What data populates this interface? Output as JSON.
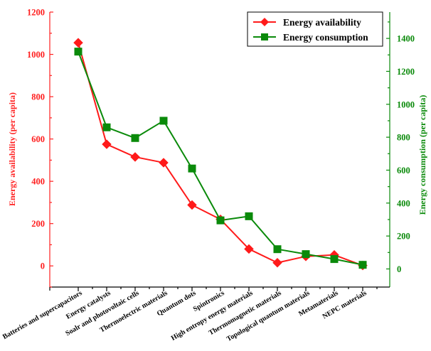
{
  "chart_data": {
    "type": "line",
    "categories": [
      "Batteries and supercapacitors",
      "Energy catalysts",
      "Soalr and photovoltaic cells",
      "Thermoelectric materials",
      "Quantum dots",
      "Spintronics",
      "High entropy energy materials",
      "Thermomagnetic materials",
      "Topological quantum materials",
      "Metamaterials",
      "NEPC materials"
    ],
    "series": [
      {
        "name": "Energy availability",
        "axis": "left",
        "color": "#ff1a1a",
        "marker": "diamond",
        "values": [
          1055,
          575,
          515,
          488,
          288,
          220,
          80,
          15,
          45,
          52,
          2
        ]
      },
      {
        "name": "Energy consumption",
        "axis": "right",
        "color": "#0a8a0a",
        "marker": "square",
        "values": [
          1320,
          860,
          795,
          900,
          610,
          295,
          320,
          120,
          90,
          60,
          25
        ]
      }
    ],
    "ylabel": "Energy availability (per capita)",
    "ylabel_right": "Energy consumption (per capita)",
    "ylim": [
      -100,
      1200
    ],
    "yticks": [
      0,
      200,
      400,
      600,
      800,
      1000,
      1200
    ],
    "ylim_right": [
      -110,
      1560
    ],
    "yticks_right": [
      0,
      200,
      400,
      600,
      800,
      1000,
      1200,
      1400
    ],
    "legend_position": "top-right",
    "grid": false
  }
}
